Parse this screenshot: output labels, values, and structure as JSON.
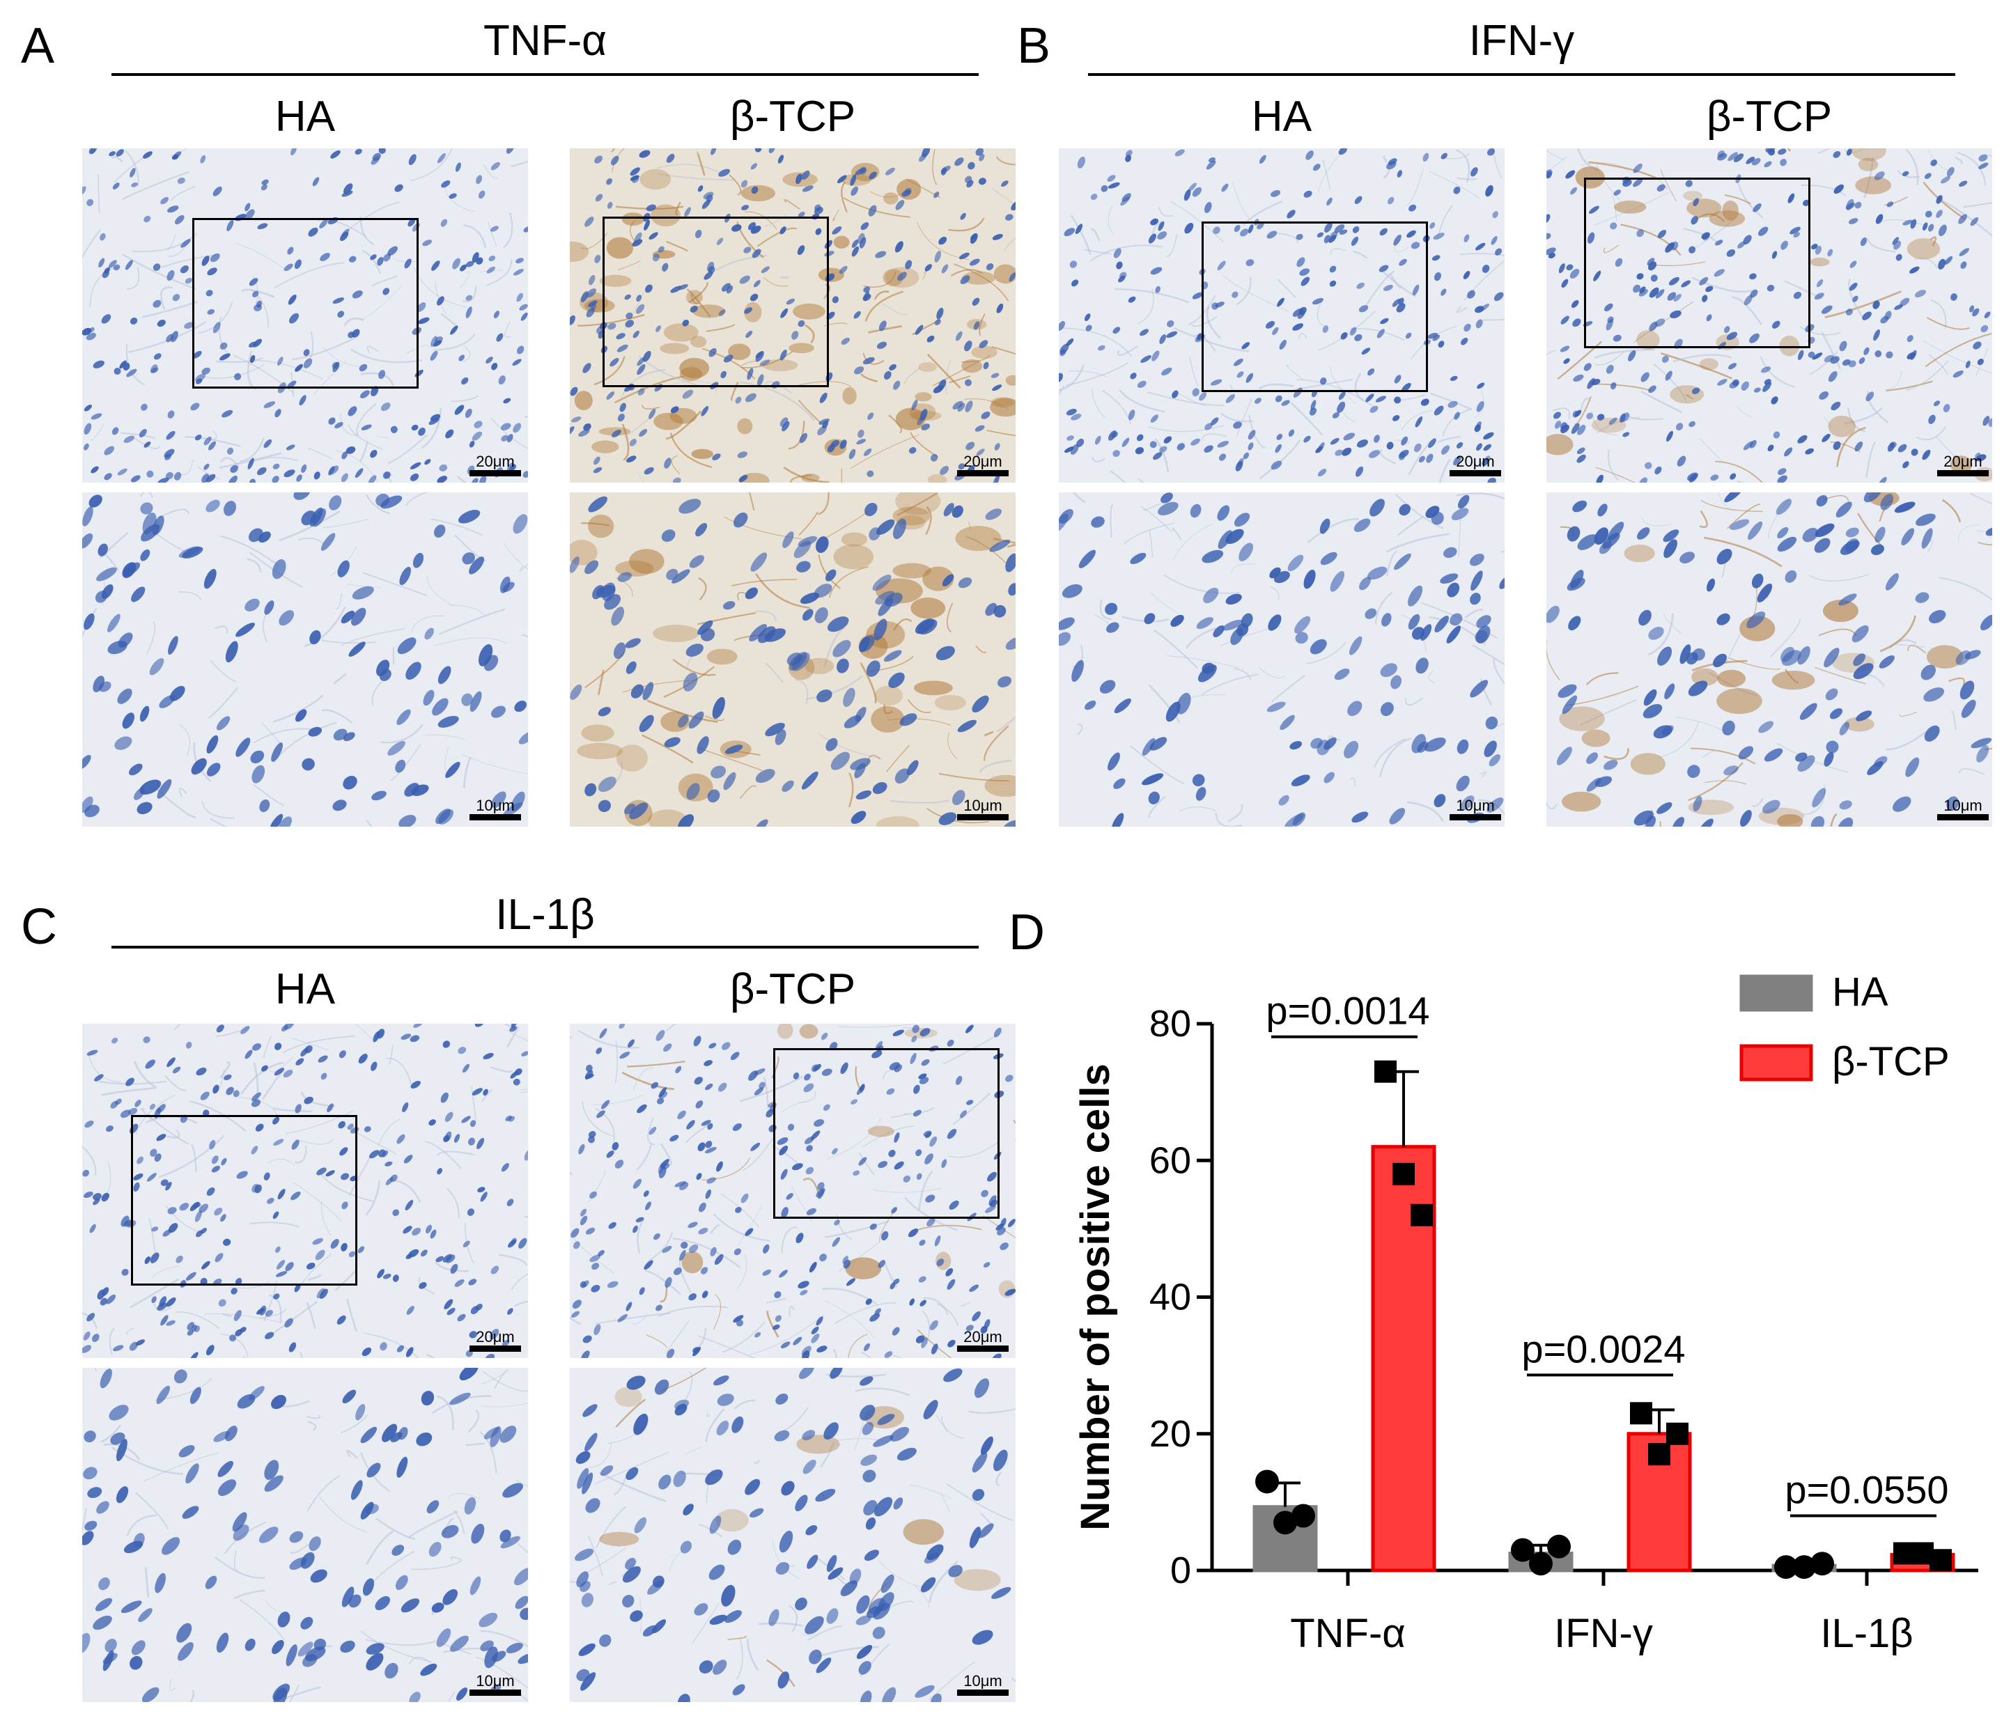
{
  "panels": {
    "A": {
      "letter": "A",
      "marker": "TNF-α"
    },
    "B": {
      "letter": "B",
      "marker": "IFN-γ"
    },
    "C": {
      "letter": "C",
      "marker": "IL-1β"
    },
    "D": {
      "letter": "D"
    }
  },
  "groups": {
    "ha": "HA",
    "tcp": "β-TCP"
  },
  "scales": {
    "low": "20μm",
    "high": "10μm"
  },
  "colors": {
    "ha": "#808080",
    "tcp": "#ff3b3b",
    "tcp_edge": "#e60000",
    "stain_nuclei": "#3a5fb0",
    "stain_dab": "#b07a3a"
  },
  "chart_data": {
    "type": "bar",
    "ylabel": "Number of positive cells",
    "ylim": [
      0,
      80
    ],
    "yticks": [
      0,
      20,
      40,
      60,
      80
    ],
    "categories": [
      "TNF-α",
      "IFN-γ",
      "IL-1β"
    ],
    "legend_position": "top-right",
    "series": [
      {
        "name": "HA",
        "values": [
          9.3,
          2.5,
          0.7
        ],
        "errors": [
          3.5,
          1.2,
          0.5
        ],
        "points": [
          [
            13,
            7,
            8
          ],
          [
            3,
            1,
            3.5
          ],
          [
            0.5,
            0.5,
            1
          ]
        ]
      },
      {
        "name": "β-TCP",
        "values": [
          62,
          20,
          2.3
        ],
        "errors": [
          11,
          3.5,
          0.6
        ],
        "points": [
          [
            73,
            58,
            52
          ],
          [
            23,
            17,
            20
          ],
          [
            2.5,
            2.5,
            1.5
          ]
        ]
      }
    ],
    "annotations": [
      "p=0.0014",
      "p=0.0024",
      "p=0.0550"
    ]
  }
}
